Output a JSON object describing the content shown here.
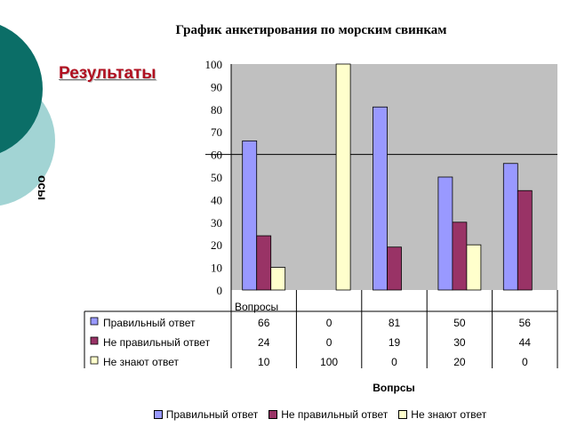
{
  "slide": {
    "title": "График анкетирования по морским свинкам",
    "section_heading": "Результаты",
    "side_label": "осы",
    "background_colors": {
      "dark_circle": "#0b6e67",
      "light_circle": "#a2d4d4"
    }
  },
  "chart_data": {
    "type": "bar",
    "title": "График анкетирования по морским свинкам",
    "xlabel": "Вопрсы",
    "ylabel": "",
    "plot_area_label": "Вопросы",
    "ylim": [
      0,
      100
    ],
    "y_ticks": [
      "0",
      "10",
      "20",
      "30",
      "40",
      "50",
      "60",
      "70",
      "80",
      "90",
      "100"
    ],
    "reference_line": 60,
    "categories": [
      "",
      "",
      "",
      "",
      ""
    ],
    "series": [
      {
        "name": "Правильный ответ",
        "values": [
          66,
          0,
          81,
          50,
          56
        ],
        "labels": [
          "66",
          "0",
          "81",
          "50",
          "56"
        ],
        "color": "#9999ff"
      },
      {
        "name": "Не правильный ответ",
        "values": [
          24,
          0,
          19,
          30,
          44
        ],
        "labels": [
          "24",
          "0",
          "19",
          "30",
          "44"
        ],
        "color": "#993366"
      },
      {
        "name": "Не знают ответ",
        "values": [
          10,
          100,
          0,
          20,
          0
        ],
        "labels": [
          "10",
          "100",
          "0",
          "20",
          "0"
        ],
        "color": "#ffffcc"
      }
    ],
    "plot_background": "#c0c0c0",
    "grid": false,
    "legend_position": "bottom",
    "data_table": true
  }
}
